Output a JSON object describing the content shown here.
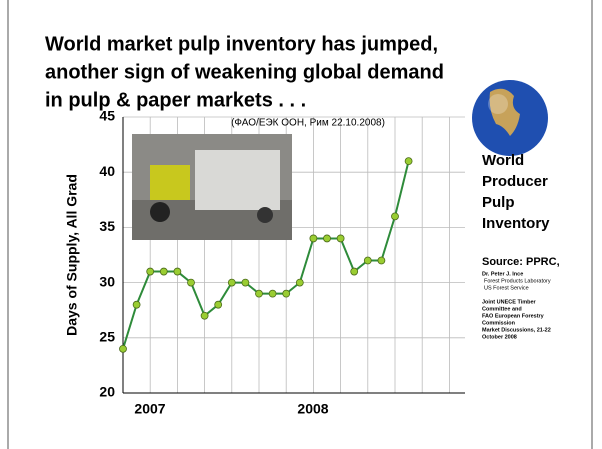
{
  "slide": {
    "title_lines": [
      "World market pulp inventory has jumped,",
      "another sign of weakening global demand",
      "in pulp & paper markets . . ."
    ],
    "side_title_lines": [
      "World",
      "Producer",
      "Pulp",
      "Inventory"
    ],
    "source": "Source: PPRC,",
    "author_lines": [
      "Dr. Peter J. Ince",
      "Forest Products Laboratory",
      "US Forest Service"
    ],
    "event_lines": [
      "Joint UNECE Timber",
      "Committee and",
      "FAO European Forestry",
      "Commission",
      "Market Discussions, 21-22",
      "October 2008"
    ]
  },
  "chart_data": {
    "type": "line",
    "annotation": "(ФАО/ЕЭК ООН, Рим 22.10.2008)",
    "y_label": "Days of Supply, All Grad",
    "x_group_labels": [
      "2007",
      "2008"
    ],
    "categories": [
      null,
      null,
      null,
      null,
      null,
      null,
      null,
      null,
      null,
      null,
      null,
      null,
      null,
      null,
      null,
      null,
      null,
      null,
      null,
      null,
      null,
      null
    ],
    "values": [
      24,
      28,
      31,
      31,
      31,
      30,
      27,
      28,
      30,
      30,
      29,
      29,
      29,
      30,
      34,
      34,
      34,
      31,
      32,
      32,
      36,
      41
    ],
    "color": "#2e8b3a",
    "marker_color": "#9acd32",
    "ylim": [
      20,
      45
    ],
    "yticks": [
      20,
      25,
      30,
      35,
      40,
      45
    ],
    "grid": true
  }
}
